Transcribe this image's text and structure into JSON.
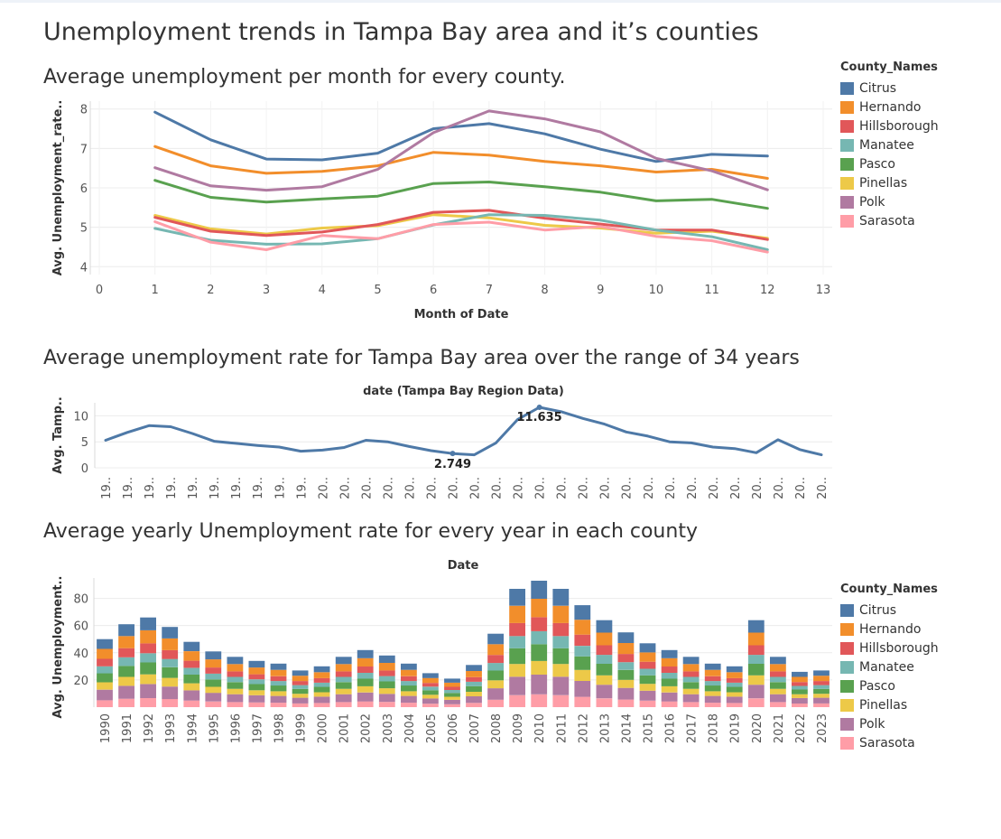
{
  "page": {
    "title": "Unemployment trends in Tampa Bay area and it’s counties",
    "section1_title": "Average unemployment per month for every county.",
    "section2_title": "Average unemployment rate for Tampa Bay area over the range of 34 years",
    "section3_title": "Average yearly Unemployment rate for every year in each county"
  },
  "legend": {
    "title": "County_Names",
    "items": [
      {
        "name": "Citrus",
        "color": "#4e79a7"
      },
      {
        "name": "Hernando",
        "color": "#f28e2b"
      },
      {
        "name": "Hillsborough",
        "color": "#e15759"
      },
      {
        "name": "Manatee",
        "color": "#76b7b2"
      },
      {
        "name": "Pasco",
        "color": "#59a14f"
      },
      {
        "name": "Pinellas",
        "color": "#edc948"
      },
      {
        "name": "Polk",
        "color": "#b07aa1"
      },
      {
        "name": "Sarasota",
        "color": "#ff9da7"
      }
    ]
  },
  "chart_data": [
    {
      "type": "line",
      "title": "Average unemployment per month for every county.",
      "xlabel": "Month of Date",
      "ylabel": "Avg. Unemployment_rate..",
      "xlim": [
        0,
        13
      ],
      "ylim": [
        3.8,
        8.2
      ],
      "x_ticks": [
        "0",
        "1",
        "2",
        "3",
        "4",
        "5",
        "6",
        "7",
        "8",
        "9",
        "10",
        "11",
        "12",
        "13"
      ],
      "y_ticks": [
        "4",
        "5",
        "6",
        "7",
        "8"
      ],
      "x": [
        1,
        2,
        3,
        4,
        5,
        6,
        7,
        8,
        9,
        10,
        11,
        12
      ],
      "grid": true,
      "legend": "right",
      "series": [
        {
          "name": "Citrus",
          "values": [
            7.92,
            7.22,
            6.73,
            6.71,
            6.88,
            7.5,
            7.63,
            7.37,
            6.98,
            6.67,
            6.85,
            6.81
          ]
        },
        {
          "name": "Hernando",
          "values": [
            7.05,
            6.56,
            6.37,
            6.42,
            6.56,
            6.9,
            6.83,
            6.67,
            6.56,
            6.4,
            6.47,
            6.24
          ]
        },
        {
          "name": "Polk",
          "values": [
            6.51,
            6.05,
            5.94,
            6.03,
            6.47,
            7.4,
            7.95,
            7.75,
            7.42,
            6.75,
            6.43,
            5.95
          ]
        },
        {
          "name": "Pasco",
          "values": [
            6.19,
            5.76,
            5.64,
            5.72,
            5.79,
            6.11,
            6.15,
            6.03,
            5.89,
            5.67,
            5.71,
            5.48
          ]
        },
        {
          "name": "Pinellas",
          "values": [
            5.3,
            4.96,
            4.83,
            4.98,
            5.04,
            5.32,
            5.24,
            5.05,
            4.98,
            4.85,
            4.9,
            4.72
          ]
        },
        {
          "name": "Hillsborough",
          "values": [
            5.25,
            4.9,
            4.79,
            4.88,
            5.07,
            5.38,
            5.43,
            5.23,
            5.08,
            4.93,
            4.93,
            4.69
          ]
        },
        {
          "name": "Manatee",
          "values": [
            4.97,
            4.67,
            4.57,
            4.58,
            4.71,
            5.06,
            5.32,
            5.3,
            5.18,
            4.93,
            4.76,
            4.43
          ]
        },
        {
          "name": "Sarasota",
          "values": [
            5.14,
            4.62,
            4.43,
            4.79,
            4.71,
            5.07,
            5.13,
            4.93,
            5.02,
            4.77,
            4.66,
            4.37
          ]
        }
      ]
    },
    {
      "type": "line",
      "title": "Average unemployment rate for Tampa Bay area over the range of 34 years",
      "header": "date (Tampa Bay Region Data)",
      "ylabel": "Avg. Tamp..",
      "ylim": [
        0,
        12.5
      ],
      "y_ticks": [
        "0",
        "5",
        "10"
      ],
      "categories": [
        "19..",
        "19..",
        "19..",
        "19..",
        "19..",
        "19..",
        "19..",
        "19..",
        "19..",
        "19..",
        "20..",
        "20..",
        "20..",
        "20..",
        "20..",
        "20..",
        "20..",
        "20..",
        "20..",
        "20..",
        "20..",
        "20..",
        "20..",
        "20..",
        "20..",
        "20..",
        "20..",
        "20..",
        "20..",
        "20..",
        "20..",
        "20..",
        "20..",
        "20.."
      ],
      "values": [
        5.3,
        6.8,
        8.1,
        7.9,
        6.6,
        5.1,
        4.7,
        4.3,
        4.0,
        3.2,
        3.4,
        3.9,
        5.3,
        5.0,
        4.1,
        3.3,
        2.749,
        2.5,
        4.8,
        9.3,
        11.635,
        10.8,
        9.5,
        8.4,
        6.9,
        6.1,
        5.0,
        4.8,
        4.0,
        3.7,
        2.9,
        5.4,
        3.5,
        2.5
      ],
      "labels": [
        {
          "text": "11.635",
          "index": 20
        },
        {
          "text": "2.749",
          "index": 16
        }
      ]
    },
    {
      "type": "bar",
      "stacked": true,
      "title": "Average yearly Unemployment rate for every year in each county",
      "header": "Date",
      "ylabel": "Avg. Unemployment..",
      "ylim": [
        0,
        95
      ],
      "y_ticks": [
        "20",
        "40",
        "60",
        "80"
      ],
      "categories": [
        "1990",
        "1991",
        "1992",
        "1993",
        "1994",
        "1995",
        "1996",
        "1997",
        "1998",
        "1999",
        "2000",
        "2001",
        "2002",
        "2003",
        "2004",
        "2005",
        "2006",
        "2007",
        "2008",
        "2009",
        "2010",
        "2011",
        "2012",
        "2013",
        "2014",
        "2015",
        "2016",
        "2017",
        "2018",
        "2019",
        "2020",
        "2021",
        "2022",
        "2023"
      ],
      "totals": [
        50,
        61,
        66,
        59,
        48,
        41,
        37,
        34,
        32,
        27,
        30,
        37,
        42,
        38,
        32,
        25,
        21,
        31,
        54,
        87,
        93,
        87,
        75,
        64,
        55,
        47,
        42,
        37,
        32,
        30,
        64,
        37,
        26,
        27
      ],
      "series": [
        {
          "name": "Sarasota",
          "share": 0.101
        },
        {
          "name": "Polk",
          "share": 0.156
        },
        {
          "name": "Pinellas",
          "share": 0.108
        },
        {
          "name": "Pasco",
          "share": 0.133
        },
        {
          "name": "Manatee",
          "share": 0.103
        },
        {
          "name": "Hillsborough",
          "share": 0.11
        },
        {
          "name": "Hernando",
          "share": 0.146
        },
        {
          "name": "Citrus",
          "share": 0.143
        }
      ],
      "legend": "right"
    }
  ]
}
